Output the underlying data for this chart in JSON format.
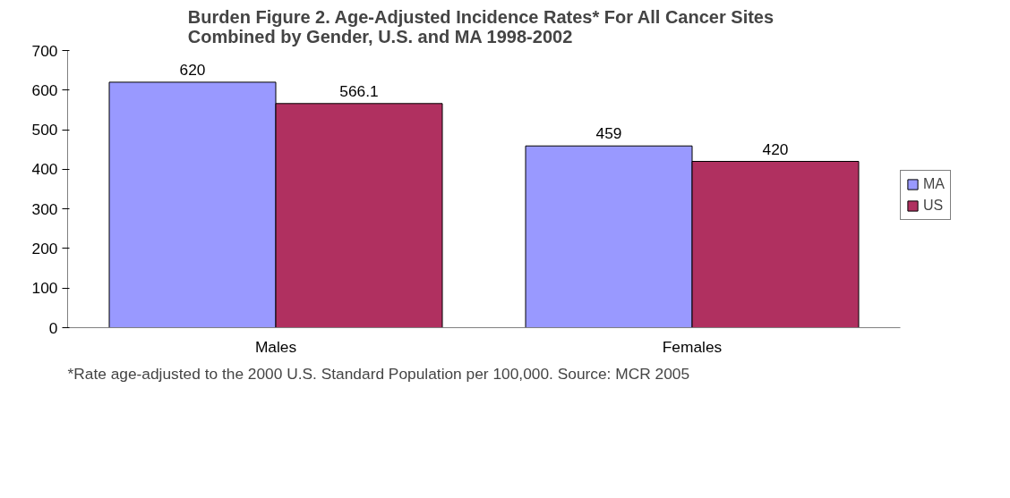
{
  "chart_data": {
    "type": "bar",
    "title": "Burden Figure 2.  Age-Adjusted Incidence Rates* For All Cancer Sites Combined by Gender, U.S. and MA  1998-2002",
    "categories": [
      "Males",
      "Females"
    ],
    "series": [
      {
        "name": "MA",
        "color": "#9999ff",
        "values": [
          620,
          459
        ]
      },
      {
        "name": "US",
        "color": "#b03060",
        "values": [
          566.1,
          420
        ]
      }
    ],
    "ylim": [
      0,
      700
    ],
    "yticks": [
      0,
      100,
      200,
      300,
      400,
      500,
      600,
      700
    ],
    "grid": false,
    "legend": "right",
    "data_labels": true,
    "annotations": [
      "*Rate age-adjusted to the 2000 U.S. Standard Population per 100,000.  Source: MCR 2005"
    ]
  }
}
